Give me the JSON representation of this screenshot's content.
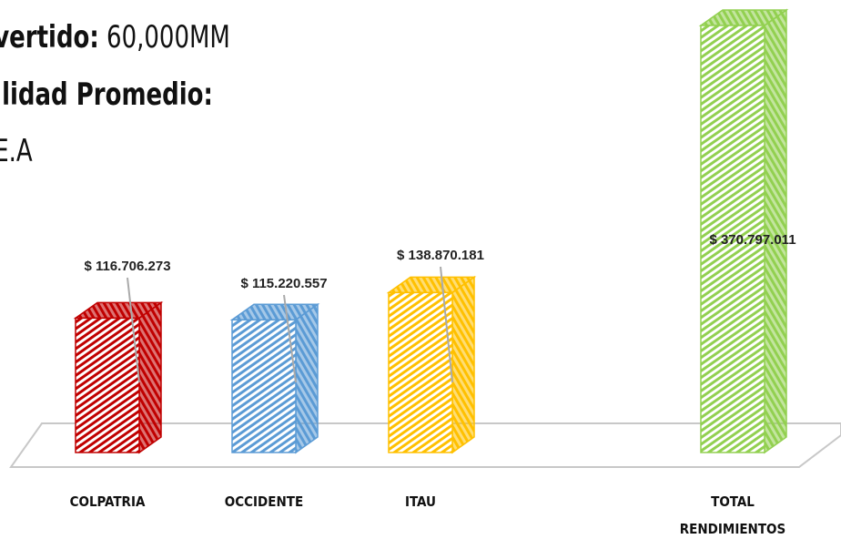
{
  "chart_data": {
    "type": "bar3d",
    "title": [
      "vertido:",
      "60,000MM"
    ],
    "subtitle": "ilidad Promedio:",
    "note": "E.A",
    "categories": [
      "COLPATRIA",
      "OCCIDENTE",
      "ITAU",
      "TOTAL RENDIMIENTOS"
    ],
    "values": [
      116706273,
      115220557,
      138870181,
      370797011
    ],
    "value_labels": [
      "$ 116.706.273",
      "$ 115.220.557",
      "$ 138.870.181",
      "$ 370.797.011"
    ],
    "colors": [
      "#c00000",
      "#5b9bd5",
      "#ffc000",
      "#92d050"
    ]
  }
}
